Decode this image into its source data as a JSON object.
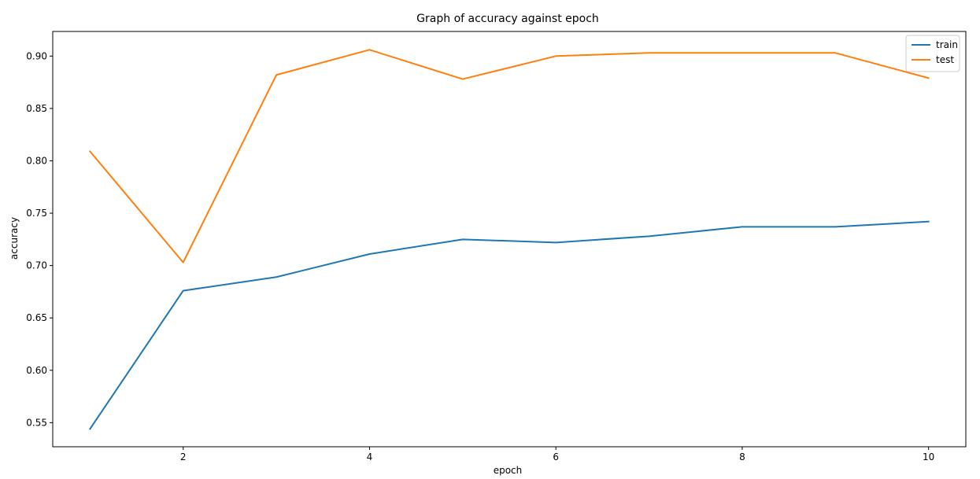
{
  "chart_data": {
    "type": "line",
    "title": "Graph of accuracy against epoch",
    "xlabel": "epoch",
    "ylabel": "accuracy",
    "x": [
      1,
      2,
      3,
      4,
      5,
      6,
      7,
      8,
      9,
      10
    ],
    "xlim": [
      0.6,
      10.4
    ],
    "ylim": [
      0.527,
      0.9235
    ],
    "xticks": [
      2,
      4,
      6,
      8,
      10
    ],
    "yticks": [
      0.55,
      0.6,
      0.65,
      0.7,
      0.75,
      0.8,
      0.85,
      0.9
    ],
    "ytick_labels": [
      "0.55",
      "0.60",
      "0.65",
      "0.70",
      "0.75",
      "0.80",
      "0.85",
      "0.90"
    ],
    "grid": false,
    "legend_position": "top-right",
    "series": [
      {
        "name": "train",
        "color": "#1f77b4",
        "values": [
          0.544,
          0.676,
          0.689,
          0.711,
          0.725,
          0.722,
          0.728,
          0.737,
          0.737,
          0.742
        ]
      },
      {
        "name": "test",
        "color": "#ff7f0e",
        "values": [
          0.809,
          0.703,
          0.882,
          0.906,
          0.878,
          0.9,
          0.903,
          0.903,
          0.903,
          0.879
        ]
      }
    ]
  }
}
